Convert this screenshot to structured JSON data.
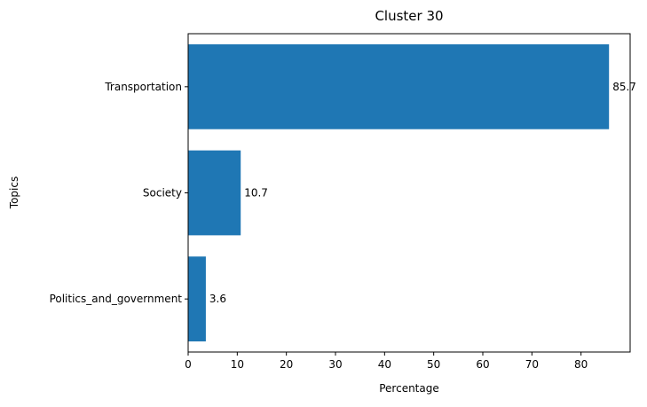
{
  "chart_data": {
    "type": "bar",
    "orientation": "horizontal",
    "title": "Cluster 30",
    "xlabel": "Percentage",
    "ylabel": "Topics",
    "categories": [
      "Transportation",
      "Society",
      "Politics_and_government"
    ],
    "values": [
      85.7,
      10.7,
      3.6
    ],
    "data_labels": [
      "85.7",
      "10.7",
      "3.6"
    ],
    "xlim": [
      0,
      90
    ],
    "xticks": [
      0,
      10,
      20,
      30,
      40,
      50,
      60,
      70,
      80
    ],
    "xtick_labels": [
      "0",
      "10",
      "20",
      "30",
      "40",
      "50",
      "60",
      "70",
      "80"
    ],
    "grid": false,
    "bar_color": "#1f77b4"
  }
}
